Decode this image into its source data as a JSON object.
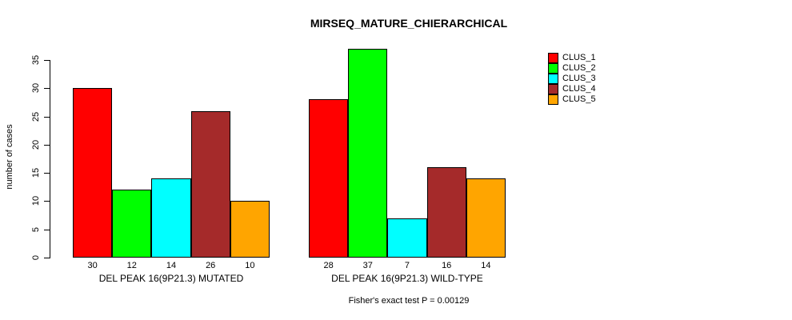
{
  "figure": {
    "title": "MIRSEQ_MATURE_CHIERARCHICAL",
    "footnote": "Fisher's exact test P = 0.00129"
  },
  "chart_data": {
    "type": "bar",
    "title": "MIRSEQ_MATURE_CHIERARCHICAL",
    "ylabel": "number of cases",
    "xlabel": "",
    "ylim": [
      0,
      37
    ],
    "yticks": [
      0,
      5,
      10,
      15,
      20,
      25,
      30,
      35
    ],
    "grid": false,
    "legend_position": "right",
    "categories": [
      "DEL PEAK 16(9P21.3) MUTATED",
      "DEL PEAK 16(9P21.3) WILD-TYPE"
    ],
    "series": [
      {
        "name": "CLUS_1",
        "color": "#FF0000",
        "values": [
          30,
          28
        ]
      },
      {
        "name": "CLUS_2",
        "color": "#00FF00",
        "values": [
          12,
          37
        ]
      },
      {
        "name": "CLUS_3",
        "color": "#00FFFF",
        "values": [
          14,
          7
        ]
      },
      {
        "name": "CLUS_4",
        "color": "#A52A2A",
        "values": [
          26,
          16
        ]
      },
      {
        "name": "CLUS_5",
        "color": "#FFA500",
        "values": [
          10,
          14
        ]
      }
    ],
    "bar_value_labels": [
      [
        30,
        12,
        14,
        26,
        10
      ],
      [
        28,
        37,
        7,
        16,
        14
      ]
    ],
    "footnote": "Fisher's exact test P = 0.00129"
  }
}
